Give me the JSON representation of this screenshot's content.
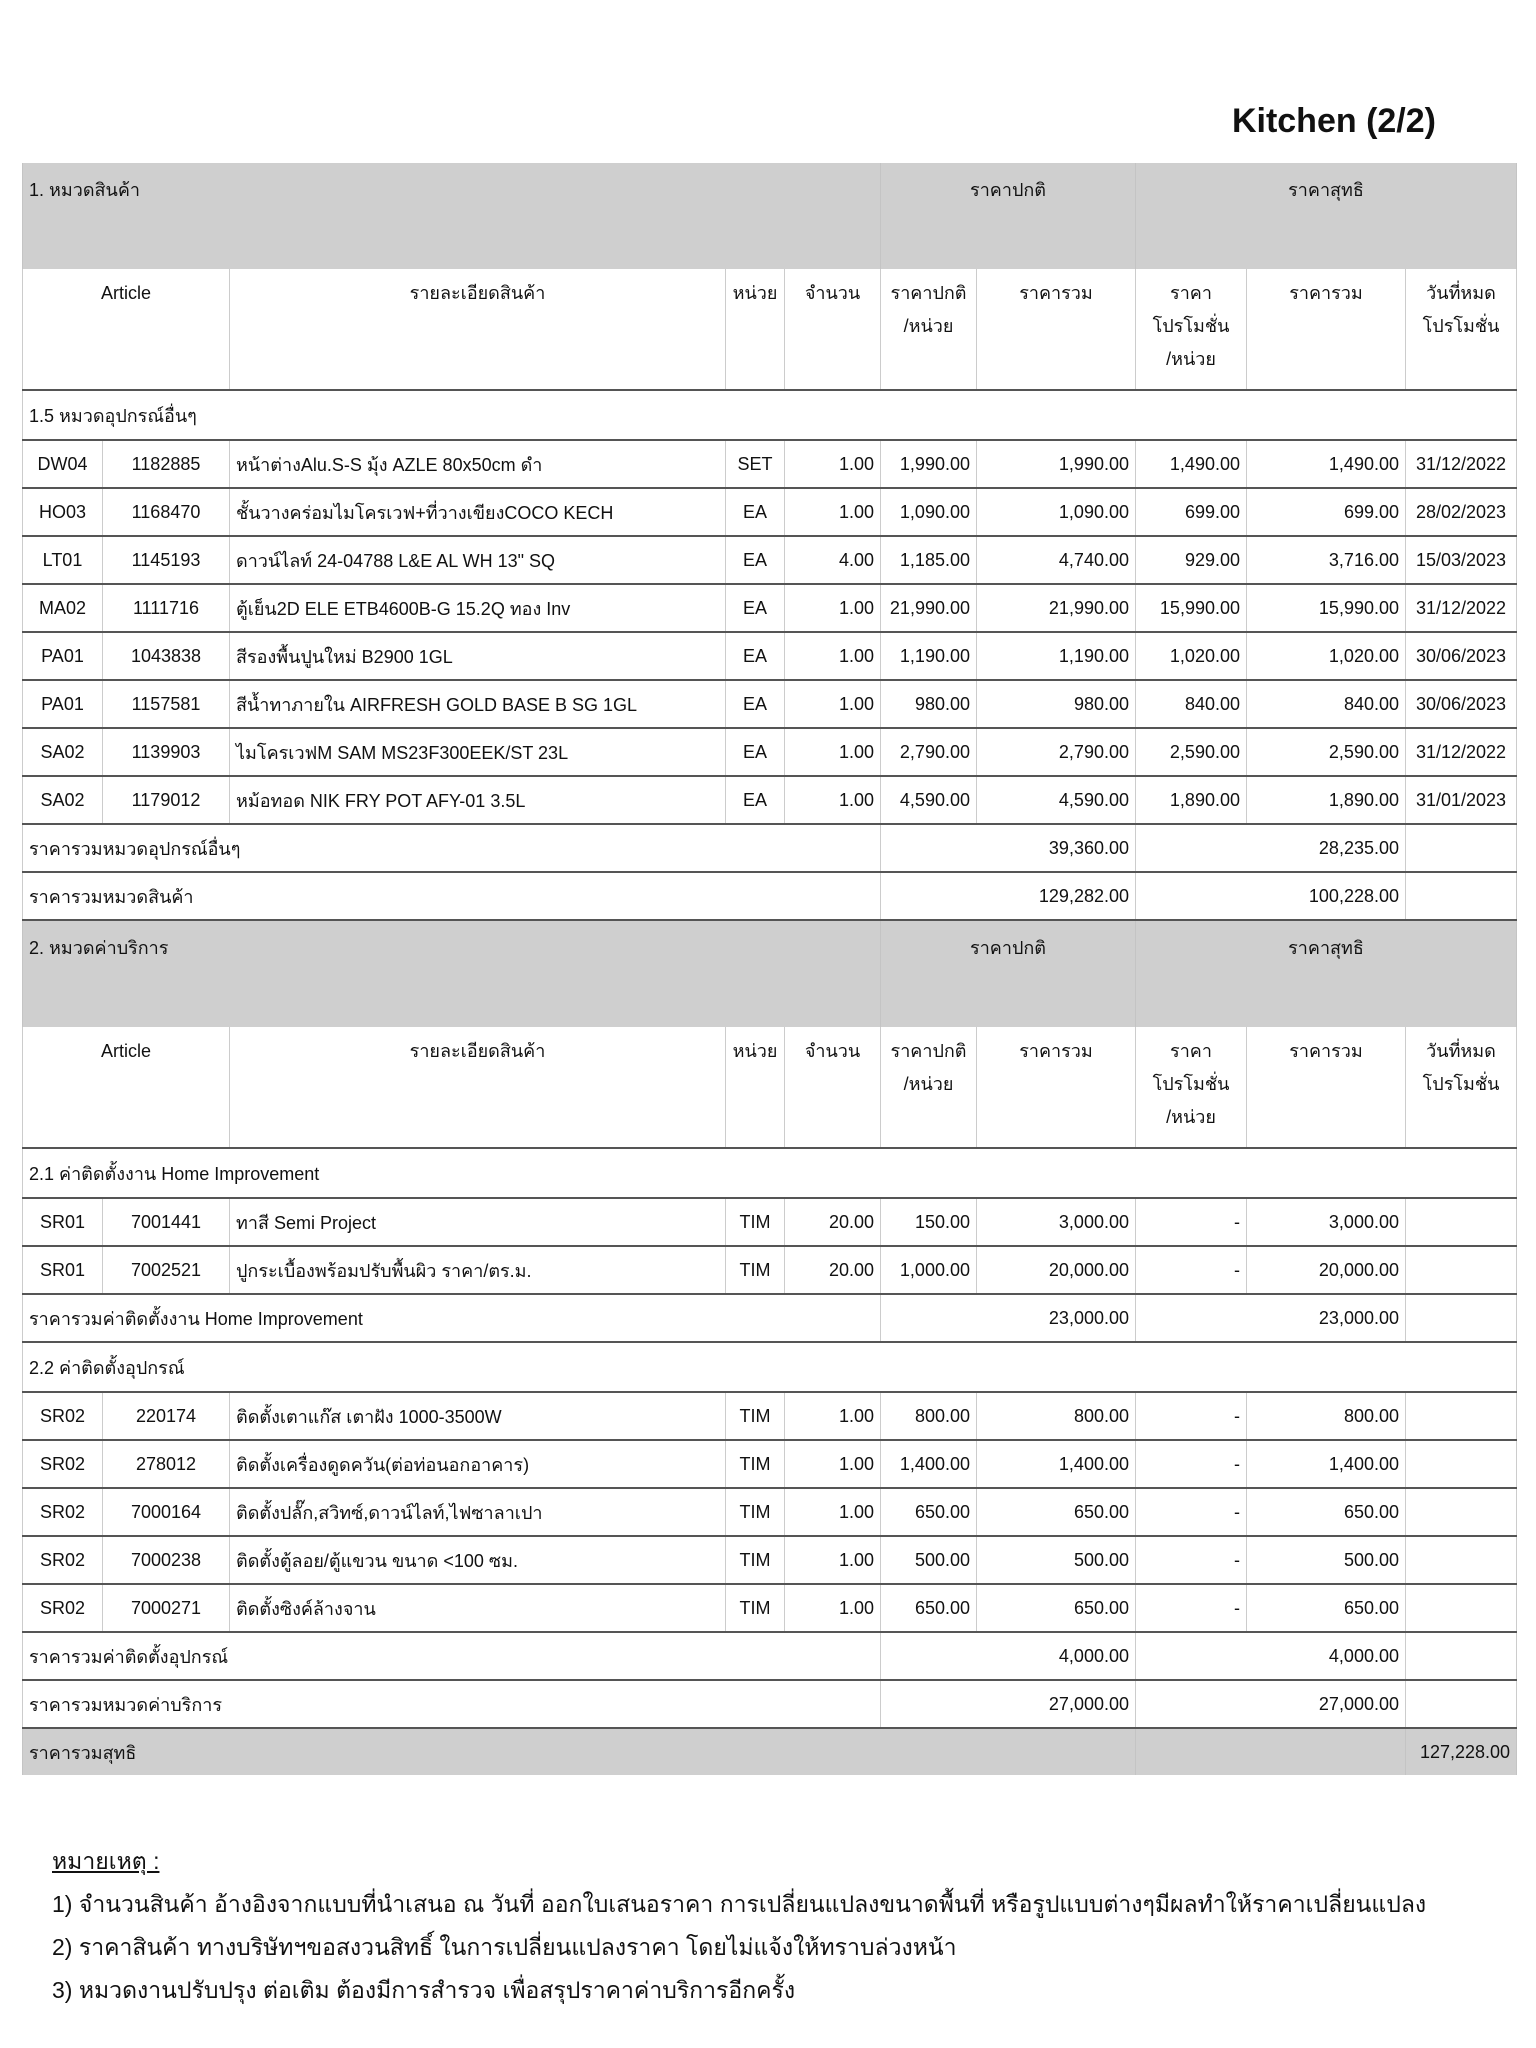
{
  "header": {
    "title": "Kitchen (2/2)"
  },
  "sections": [
    {
      "title": "1. หมวดสินค้า",
      "price_normal": "ราคาปกติ",
      "price_net": "ราคาสุทธิ",
      "columns": [
        "Article",
        "รายละเอียดสินค้า",
        "หน่วย",
        "จำนวน",
        "ราคาปกติ\n/หน่วย",
        "ราคารวม",
        "ราคา\nโปรโมชั่น\n/หน่วย",
        "ราคารวม",
        "วันที่หมด\nโปรโมชั่น"
      ],
      "groups": [
        {
          "title": "1.5 หมวดอุปกรณ์อื่นๆ",
          "rows": [
            [
              "DW04",
              "1182885",
              "หน้าต่างAlu.S-S มุ้ง AZLE 80x50cm ดำ",
              "SET",
              "1.00",
              "1,990.00",
              "1,990.00",
              "1,490.00",
              "1,490.00",
              "31/12/2022"
            ],
            [
              "HO03",
              "1168470",
              "ชั้นวางคร่อมไมโครเวฟ+ที่วางเขียงCOCO KECH",
              "EA",
              "1.00",
              "1,090.00",
              "1,090.00",
              "699.00",
              "699.00",
              "28/02/2023"
            ],
            [
              "LT01",
              "1145193",
              "ดาวน์ไลท์ 24-04788 L&E AL WH 13\" SQ",
              "EA",
              "4.00",
              "1,185.00",
              "4,740.00",
              "929.00",
              "3,716.00",
              "15/03/2023"
            ],
            [
              "MA02",
              "1111716",
              "ตู้เย็น2D ELE ETB4600B-G 15.2Q ทอง Inv",
              "EA",
              "1.00",
              "21,990.00",
              "21,990.00",
              "15,990.00",
              "15,990.00",
              "31/12/2022"
            ],
            [
              "PA01",
              "1043838",
              "สีรองพื้นปูนใหม่ B2900  1GL",
              "EA",
              "1.00",
              "1,190.00",
              "1,190.00",
              "1,020.00",
              "1,020.00",
              "30/06/2023"
            ],
            [
              "PA01",
              "1157581",
              "สีน้ำทาภายใน AIRFRESH GOLD BASE B SG 1GL",
              "EA",
              "1.00",
              "980.00",
              "980.00",
              "840.00",
              "840.00",
              "30/06/2023"
            ],
            [
              "SA02",
              "1139903",
              "ไมโครเวฟM SAM MS23F300EEK/ST 23L",
              "EA",
              "1.00",
              "2,790.00",
              "2,790.00",
              "2,590.00",
              "2,590.00",
              "31/12/2022"
            ],
            [
              "SA02",
              "1179012",
              "หม้อทอด NIK FRY POT AFY-01 3.5L",
              "EA",
              "1.00",
              "4,590.00",
              "4,590.00",
              "1,890.00",
              "1,890.00",
              "31/01/2023"
            ]
          ],
          "subtotal": {
            "label": "ราคารวมหมวดอุปกรณ์อื่นๆ",
            "normal": "39,360.00",
            "net": "28,235.00"
          }
        }
      ],
      "total": {
        "label": "ราคารวมหมวดสินค้า",
        "normal": "129,282.00",
        "net": "100,228.00"
      }
    },
    {
      "title": "2. หมวดค่าบริการ",
      "price_normal": "ราคาปกติ",
      "price_net": "ราคาสุทธิ",
      "columns": [
        "Article",
        "รายละเอียดสินค้า",
        "หน่วย",
        "จำนวน",
        "ราคาปกติ\n/หน่วย",
        "ราคารวม",
        "ราคา\nโปรโมชั่น\n/หน่วย",
        "ราคารวม",
        "วันที่หมด\nโปรโมชั่น"
      ],
      "groups": [
        {
          "title": "2.1 ค่าติดตั้งงาน Home Improvement",
          "rows": [
            [
              "SR01",
              "7001441",
              "ทาสี Semi Project",
              "TIM",
              "20.00",
              "150.00",
              "3,000.00",
              "-",
              "3,000.00"
            ],
            [
              "SR01",
              "7002521",
              "ปูกระเบื้องพร้อมปรับพื้นผิว ราคา/ตร.ม.",
              "TIM",
              "20.00",
              "1,000.00",
              "20,000.00",
              "-",
              "20,000.00"
            ]
          ],
          "subtotal": {
            "label": "ราคารวมค่าติดตั้งงาน Home Improvement",
            "normal": "23,000.00",
            "net": "23,000.00"
          }
        },
        {
          "title": "2.2 ค่าติดตั้งอุปกรณ์",
          "rows": [
            [
              "SR02",
              "220174",
              "ติดตั้งเตาแก๊ส เตาฝัง 1000-3500W",
              "TIM",
              "1.00",
              "800.00",
              "800.00",
              "-",
              "800.00"
            ],
            [
              "SR02",
              "278012",
              "ติดตั้งเครื่องดูดควัน(ต่อท่อนอกอาคาร)",
              "TIM",
              "1.00",
              "1,400.00",
              "1,400.00",
              "-",
              "1,400.00"
            ],
            [
              "SR02",
              "7000164",
              "ติดตั้งปลั๊ก,สวิทซ์,ดาวน์ไลท์,ไฟซาลาเปา",
              "TIM",
              "1.00",
              "650.00",
              "650.00",
              "-",
              "650.00"
            ],
            [
              "SR02",
              "7000238",
              "ติดตั้งตู้ลอย/ตู้แขวน ขนาด <100 ซม.",
              "TIM",
              "1.00",
              "500.00",
              "500.00",
              "-",
              "500.00"
            ],
            [
              "SR02",
              "7000271",
              "ติดตั้งซิงค์ล้างจาน",
              "TIM",
              "1.00",
              "650.00",
              "650.00",
              "-",
              "650.00"
            ]
          ],
          "subtotal": {
            "label": "ราคารวมค่าติดตั้งอุปกรณ์",
            "normal": "4,000.00",
            "net": "4,000.00"
          }
        }
      ],
      "total": {
        "label": "ราคารวมหมวดค่าบริการ",
        "normal": "27,000.00",
        "net": "27,000.00"
      }
    }
  ],
  "grand_total": {
    "label": "ราคารวมสุทธิ",
    "value": "127,228.00"
  },
  "notes": {
    "title": "หมายเหตุ :",
    "lines": [
      "1) จำนวนสินค้า อ้างอิงจากแบบที่นำเสนอ ณ วันที่ ออกใบเสนอราคา การเปลี่ยนแปลงขนาดพื้นที่ หรือรูปแบบต่างๆมีผลทำให้ราคาเปลี่ยนแปลง",
      "2) ราคาสินค้า ทางบริษัทฯขอสงวนสิทธิ์ ในการเปลี่ยนแปลงราคา โดยไม่แจ้งให้ทราบล่วงหน้า",
      "3) หมวดงานปรับปรุง ต่อเติม ต้องมีการสำรวจ เพื่อสรุปราคาค่าบริการอีกครั้ง"
    ]
  }
}
